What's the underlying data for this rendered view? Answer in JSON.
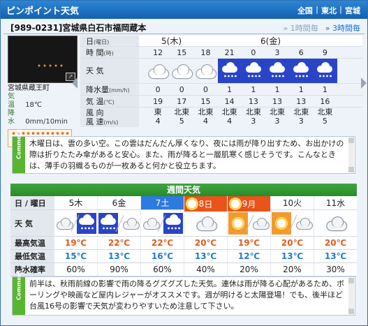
{
  "header": {
    "title": "ピンポイント天気",
    "nav": [
      "全国",
      "東北",
      "宮城"
    ]
  },
  "location": {
    "code_name": "[989-0231]宮城県白石市福岡蔵本",
    "tabs": [
      "1時間毎",
      "3時間毎"
    ]
  },
  "camera": {
    "place": "宮城県蔵王町",
    "temp_label": "気 温",
    "temp_value": "18℃",
    "rain_label": "降 水",
    "rain_value": "0mm/10min",
    "live_label": "実 況"
  },
  "hourly": {
    "row_labels": {
      "date": "日",
      "date_unit": "(曜日)",
      "time": "時 間",
      "time_unit": "(時)",
      "weather": "天 気",
      "precip": "降水量",
      "precip_unit": "(mm/h)",
      "temp": "気 温",
      "temp_unit": "(℃)",
      "wind_dir": "風 向",
      "wind_speed": "風 速",
      "wind_unit": "(m/s)"
    },
    "days": [
      "5(木)",
      "6(金)"
    ],
    "times": [
      "12",
      "15",
      "18",
      "21",
      "0",
      "3",
      "6",
      "9"
    ],
    "weather": [
      "cloud",
      "cloud",
      "cloud",
      "rain",
      "rain",
      "rain",
      "rain",
      "rain"
    ],
    "precip": [
      "0",
      "0",
      "0",
      "1",
      "1",
      "1",
      "1",
      "1"
    ],
    "temps": [
      "19",
      "17",
      "15",
      "14",
      "13",
      "13",
      "13",
      "16"
    ],
    "wind_dirs": [
      "東",
      "北東",
      "北東",
      "北東",
      "北東",
      "北東",
      "北東",
      "北東"
    ],
    "wind_speeds": [
      "4",
      "5",
      "4",
      "4",
      "3",
      "3",
      "3",
      "5"
    ]
  },
  "comment1": {
    "tag": "Comment",
    "text": "木曜日は、雲の多い空。この雲はだんだん厚くなり、夜には雨が降り出すため、お出かけの際は折りたたみ傘があると安心。また、雨が降ると一層肌寒く感じそうです。こんなときは、薄手の羽織るものが一枚あると何かと役立ちます。"
  },
  "weekly": {
    "title": "週間天気",
    "labels": {
      "day": "日 / 曜日",
      "weather": "天 気",
      "hi": "最高気温",
      "lo": "最低気温",
      "pop": "降水確率"
    },
    "days": [
      {
        "date": "5",
        "dow": "木",
        "kind": "normal",
        "wx": "cloud-rain",
        "hi": "19℃",
        "lo": "15℃",
        "pop": "60%"
      },
      {
        "date": "6",
        "dow": "金",
        "kind": "normal",
        "wx": "rain-cloud",
        "hi": "22℃",
        "lo": "13℃",
        "pop": "90%"
      },
      {
        "date": "7",
        "dow": "土",
        "kind": "sat",
        "wx": "cloud-rain",
        "hi": "22℃",
        "lo": "16℃",
        "pop": "60%"
      },
      {
        "date": "8",
        "dow": "日",
        "kind": "sun",
        "wx": "cloud",
        "hi": "20℃",
        "lo": "13℃",
        "pop": "40%"
      },
      {
        "date": "9",
        "dow": "月",
        "kind": "sun",
        "wx": "sun-cloud",
        "hi": "19℃",
        "lo": "12℃",
        "pop": "20%"
      },
      {
        "date": "10",
        "dow": "火",
        "kind": "normal",
        "wx": "sun-cloud",
        "hi": "20℃",
        "lo": "13℃",
        "pop": "20%"
      },
      {
        "date": "11",
        "dow": "水",
        "kind": "normal",
        "wx": "cloud",
        "hi": "20℃",
        "lo": "13℃",
        "pop": "30%"
      }
    ]
  },
  "comment2": {
    "tag": "Comment",
    "text": "前半は、秋雨前線の影響で雨の降るグズグズした天気。連休は雨が降る心配があるため、ボーリングや映画など屋内レジャーがオススメです。週が明けると太陽登場！でも、後半ほど台風16号の影響で天気が変わりやすいため注意して下さい。"
  }
}
